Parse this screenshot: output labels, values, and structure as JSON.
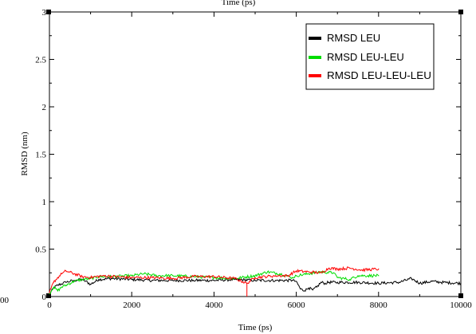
{
  "chart_data": {
    "type": "line",
    "title_partial": "Time (ps)",
    "xlabel": "Time (ps)",
    "ylabel": "RMSD (nm)",
    "xlim": [
      0,
      10000
    ],
    "ylim": [
      0,
      3
    ],
    "xticks": [
      0,
      2000,
      4000,
      6000,
      8000,
      10000
    ],
    "xtick_labels": [
      "0",
      "2000",
      "4000",
      "6000",
      "8000",
      "10000"
    ],
    "yticks": [
      0,
      0.5,
      1,
      1.5,
      2,
      2.5,
      3
    ],
    "ytick_labels": [
      "0",
      "0.5",
      "1",
      "1.5",
      "2",
      "2.5",
      "3"
    ],
    "left_edge_label": "00",
    "legend_position": "top-right",
    "grid": false,
    "series": [
      {
        "name": "RMSD LEU",
        "color": "#000000",
        "x": [
          0,
          100,
          200,
          400,
          600,
          800,
          1000,
          1200,
          1500,
          2000,
          2500,
          3000,
          3500,
          4000,
          4500,
          5000,
          5500,
          5900,
          6000,
          6100,
          6200,
          6300,
          6400,
          6500,
          6600,
          6700,
          6800,
          7000,
          7500,
          8000,
          8500,
          8800,
          9000,
          9300,
          9500,
          10000
        ],
        "y": [
          0.02,
          0.09,
          0.12,
          0.15,
          0.17,
          0.18,
          0.13,
          0.18,
          0.19,
          0.18,
          0.17,
          0.17,
          0.17,
          0.17,
          0.18,
          0.17,
          0.17,
          0.17,
          0.16,
          0.08,
          0.06,
          0.09,
          0.07,
          0.1,
          0.15,
          0.14,
          0.15,
          0.15,
          0.15,
          0.14,
          0.15,
          0.19,
          0.14,
          0.16,
          0.15,
          0.14
        ]
      },
      {
        "name": "RMSD LEU-LEU",
        "color": "#00dd00",
        "x": [
          0,
          100,
          200,
          300,
          400,
          600,
          800,
          1000,
          1200,
          1500,
          2000,
          2300,
          2600,
          3000,
          3500,
          4000,
          4500,
          5000,
          5300,
          5600,
          5900,
          6000,
          6300,
          6600,
          6900,
          7000,
          7300,
          7500,
          8000
        ],
        "y": [
          0.03,
          0.1,
          0.06,
          0.1,
          0.12,
          0.16,
          0.18,
          0.19,
          0.21,
          0.21,
          0.22,
          0.24,
          0.22,
          0.22,
          0.21,
          0.2,
          0.19,
          0.22,
          0.26,
          0.24,
          0.2,
          0.22,
          0.24,
          0.26,
          0.25,
          0.2,
          0.18,
          0.22,
          0.22
        ]
      },
      {
        "name": "RMSD LEU-LEU-LEU",
        "color": "#ff0000",
        "x": [
          0,
          100,
          200,
          300,
          400,
          600,
          800,
          1000,
          1300,
          1600,
          2000,
          2500,
          3000,
          3500,
          4000,
          4500,
          4800,
          5000,
          5500,
          5800,
          6000,
          6300,
          6600,
          6800,
          7000,
          7300,
          7600,
          8000
        ],
        "y": [
          0.04,
          0.15,
          0.2,
          0.24,
          0.27,
          0.24,
          0.21,
          0.2,
          0.22,
          0.21,
          0.2,
          0.2,
          0.19,
          0.21,
          0.21,
          0.19,
          0.14,
          0.2,
          0.22,
          0.22,
          0.27,
          0.26,
          0.25,
          0.3,
          0.29,
          0.3,
          0.28,
          0.29
        ]
      }
    ]
  }
}
